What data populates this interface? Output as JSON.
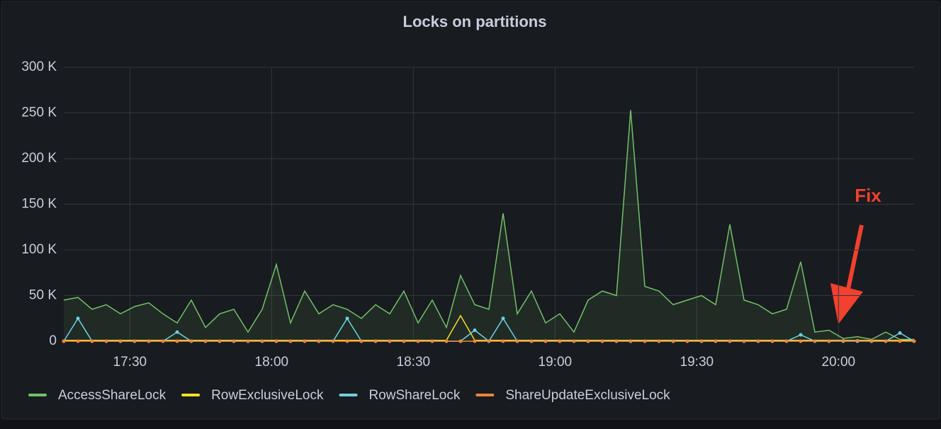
{
  "chart_data": {
    "type": "line",
    "title": "Locks on partitions",
    "x": [
      "17:16",
      "17:19",
      "17:22",
      "17:25",
      "17:28",
      "17:31",
      "17:34",
      "17:37",
      "17:40",
      "17:43",
      "17:46",
      "17:49",
      "17:52",
      "17:55",
      "17:58",
      "18:01",
      "18:04",
      "18:07",
      "18:10",
      "18:13",
      "18:16",
      "18:19",
      "18:22",
      "18:25",
      "18:28",
      "18:31",
      "18:34",
      "18:37",
      "18:40",
      "18:43",
      "18:46",
      "18:49",
      "18:52",
      "18:55",
      "18:58",
      "19:01",
      "19:04",
      "19:07",
      "19:10",
      "19:13",
      "19:16",
      "19:19",
      "19:22",
      "19:25",
      "19:28",
      "19:31",
      "19:34",
      "19:37",
      "19:40",
      "19:43",
      "19:46",
      "19:49",
      "19:52",
      "19:55",
      "19:58",
      "20:01",
      "20:04",
      "20:07",
      "20:10",
      "20:13",
      "20:16"
    ],
    "xlim": [
      "17:16",
      "20:16"
    ],
    "xticks": [
      "17:30",
      "18:00",
      "18:30",
      "19:00",
      "19:30",
      "20:00"
    ],
    "ylim": [
      0,
      300000
    ],
    "yticks": [
      0,
      {
        "value": 50000,
        "label": "50 K"
      },
      {
        "value": 100000,
        "label": "100 K"
      },
      {
        "value": 150000,
        "label": "150 K"
      },
      {
        "value": 200000,
        "label": "200 K"
      },
      {
        "value": 250000,
        "label": "250 K"
      },
      {
        "value": 300000,
        "label": "300 K"
      }
    ],
    "grid": true,
    "legend": "bottom",
    "series": [
      {
        "name": "AccessShareLock",
        "color": "#73bf69",
        "values": [
          45000,
          48000,
          35000,
          40000,
          30000,
          38000,
          42000,
          30000,
          20000,
          45000,
          15000,
          30000,
          35000,
          10000,
          35000,
          84000,
          20000,
          55000,
          30000,
          40000,
          35000,
          25000,
          40000,
          30000,
          55000,
          20000,
          45000,
          15000,
          72000,
          40000,
          35000,
          140000,
          30000,
          55000,
          20000,
          30000,
          10000,
          45000,
          55000,
          50000,
          253000,
          60000,
          55000,
          40000,
          45000,
          50000,
          40000,
          128000,
          45000,
          40000,
          30000,
          35000,
          87000,
          10000,
          12000,
          3000,
          5000,
          2000,
          10000,
          2000,
          2000
        ]
      },
      {
        "name": "RowExclusiveLock",
        "color": "#fade2a",
        "values": [
          1000,
          1000,
          1000,
          1000,
          1000,
          1000,
          1000,
          1000,
          1000,
          1000,
          1000,
          1000,
          1000,
          1000,
          1000,
          1000,
          1000,
          1000,
          1000,
          1000,
          1000,
          1000,
          1000,
          1000,
          1000,
          1000,
          1000,
          1000,
          28000,
          1000,
          1000,
          1000,
          1000,
          1000,
          1000,
          1000,
          1000,
          1000,
          1000,
          1000,
          1000,
          1000,
          1000,
          1000,
          1000,
          1000,
          1000,
          1000,
          1000,
          1000,
          1000,
          1000,
          1000,
          1000,
          1000,
          1000,
          1000,
          1000,
          1000,
          1000,
          1000
        ]
      },
      {
        "name": "RowShareLock",
        "color": "#6ed0e0",
        "values": [
          0,
          25000,
          0,
          0,
          0,
          0,
          0,
          0,
          10000,
          0,
          0,
          0,
          0,
          0,
          0,
          0,
          0,
          0,
          0,
          0,
          25000,
          0,
          0,
          0,
          0,
          0,
          0,
          0,
          0,
          12000,
          0,
          25000,
          0,
          0,
          0,
          0,
          0,
          0,
          0,
          0,
          0,
          0,
          0,
          0,
          0,
          0,
          0,
          0,
          0,
          0,
          0,
          0,
          7000,
          0,
          0,
          0,
          0,
          0,
          0,
          9000,
          0
        ]
      },
      {
        "name": "ShareUpdateExclusiveLock",
        "color": "#ef843c",
        "values": [
          0,
          0,
          0,
          0,
          0,
          0,
          0,
          0,
          0,
          0,
          0,
          0,
          0,
          0,
          0,
          0,
          0,
          0,
          0,
          0,
          0,
          0,
          0,
          0,
          0,
          0,
          0,
          0,
          0,
          0,
          0,
          0,
          0,
          0,
          0,
          0,
          0,
          0,
          0,
          0,
          0,
          0,
          0,
          0,
          0,
          0,
          0,
          0,
          0,
          0,
          0,
          0,
          0,
          0,
          0,
          500,
          500,
          0,
          0,
          0,
          0
        ]
      }
    ],
    "annotations": [
      "Fix"
    ]
  }
}
